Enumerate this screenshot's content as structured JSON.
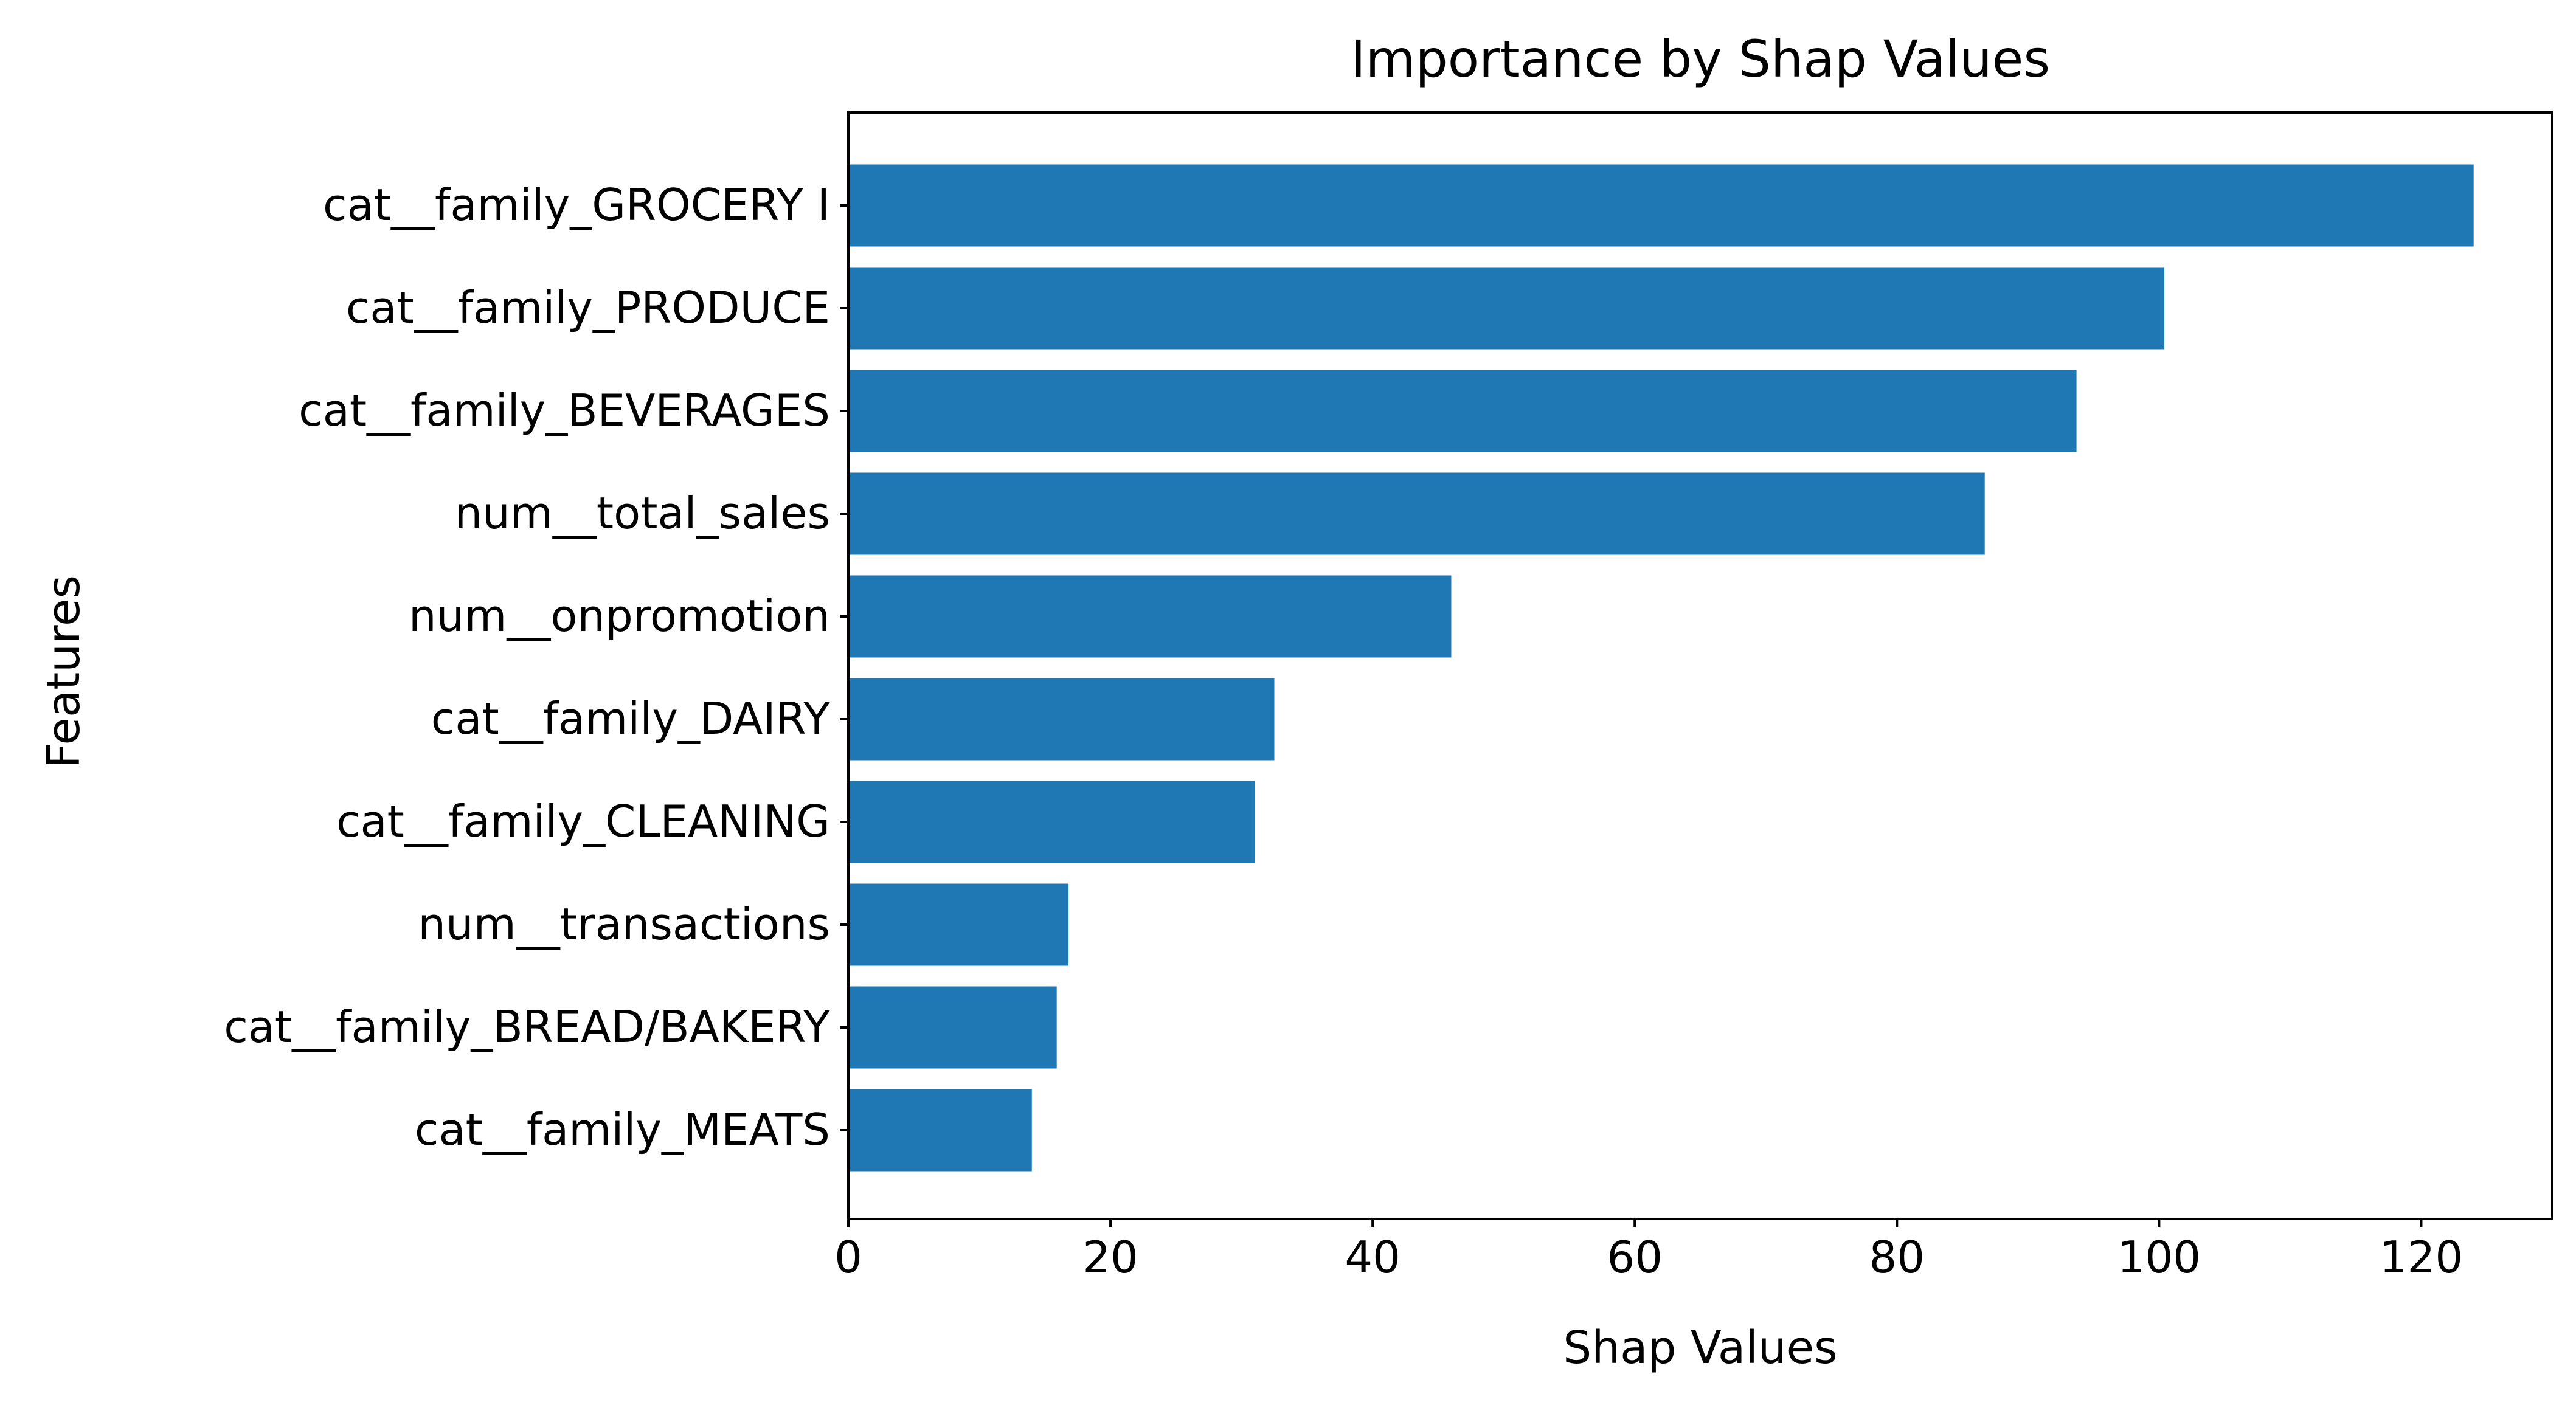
{
  "chart_data": {
    "type": "bar",
    "orientation": "horizontal",
    "title": "Importance by Shap Values",
    "xlabel": "Shap Values",
    "ylabel": "Features",
    "categories": [
      "cat__family_GROCERY I",
      "cat__family_PRODUCE",
      "cat__family_BEVERAGES",
      "num__total_sales",
      "num__onpromotion",
      "cat__family_DAIRY",
      "cat__family_CLEANING",
      "num__transactions",
      "cat__family_BREAD/BAKERY",
      "cat__family_MEATS"
    ],
    "values": [
      124,
      100.4,
      93.7,
      86.7,
      46.0,
      32.5,
      31.0,
      16.8,
      15.9,
      14.0
    ],
    "xlim": [
      0,
      130
    ],
    "xticks": [
      0,
      20,
      40,
      60,
      80,
      100,
      120
    ],
    "grid": false,
    "colors": {
      "bar": "#1f77b4",
      "axis": "#000000",
      "background": "#ffffff"
    }
  }
}
